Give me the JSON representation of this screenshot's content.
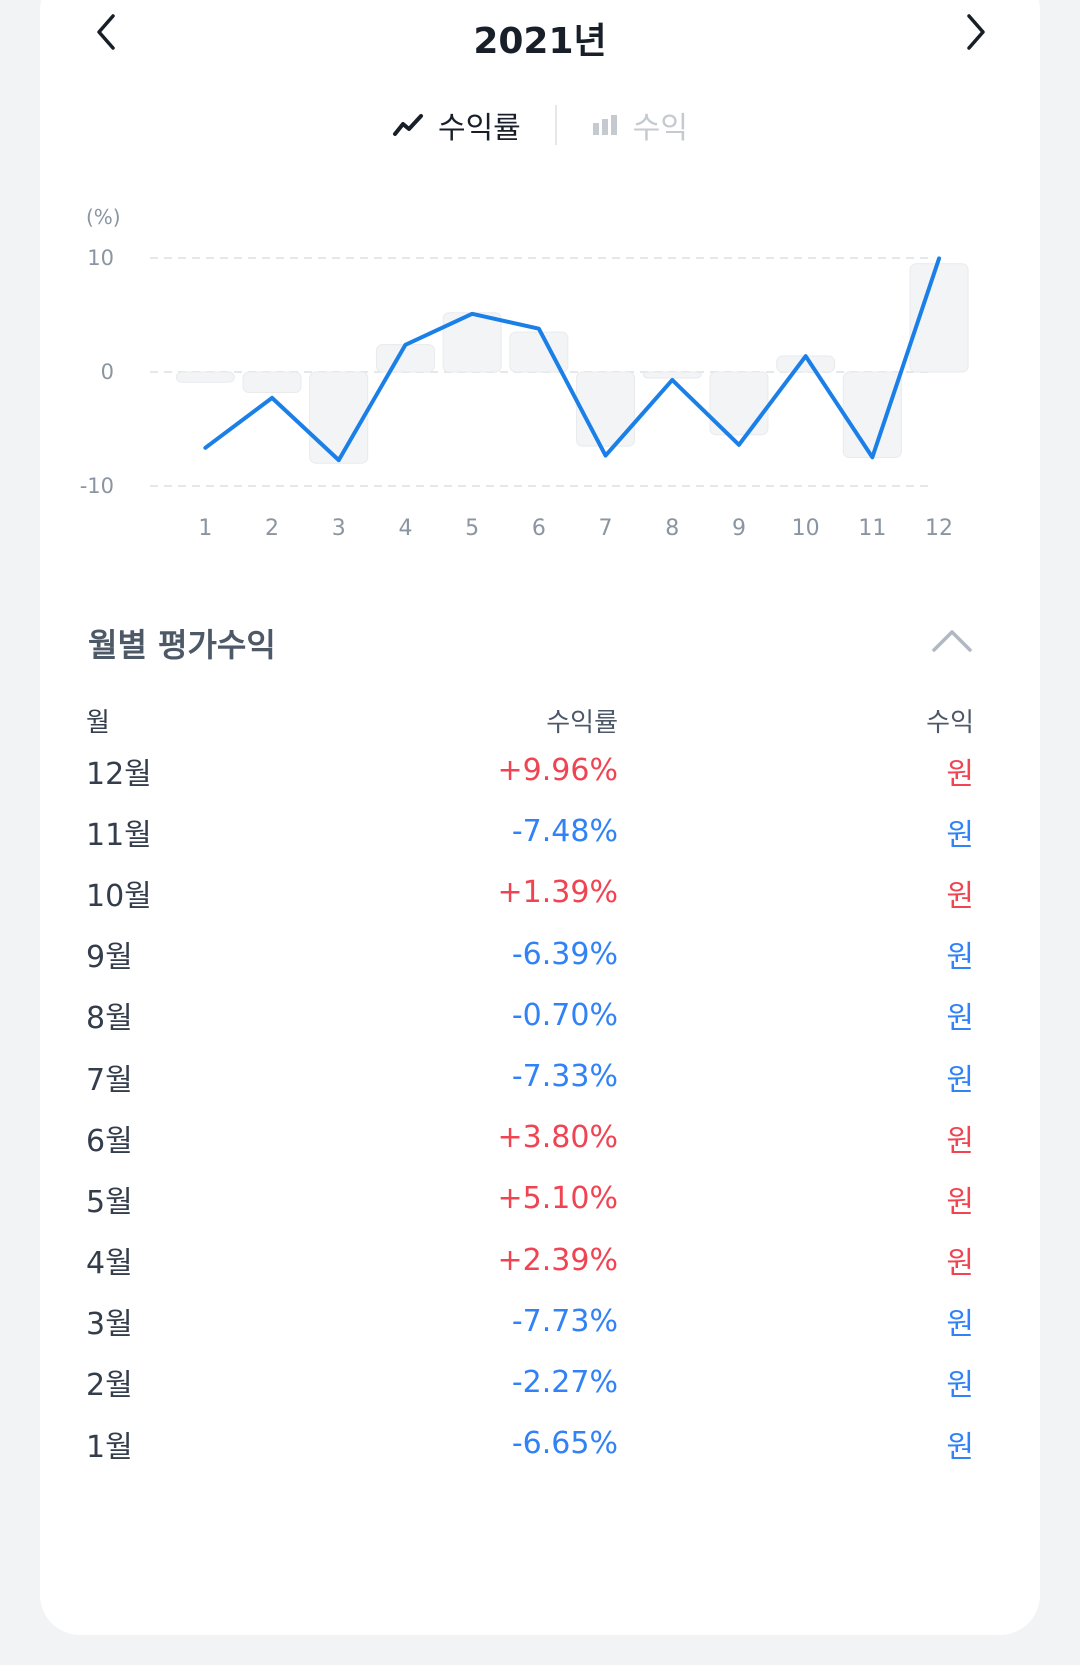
{
  "header": {
    "title": "2021년"
  },
  "tabs": [
    {
      "label": "수익률",
      "icon": "line-chart-icon",
      "active": true
    },
    {
      "label": "수익",
      "icon": "bar-chart-icon",
      "active": false
    }
  ],
  "chart_data": {
    "type": "line",
    "unit_label": "(%)",
    "x": [
      "1",
      "2",
      "3",
      "4",
      "5",
      "6",
      "7",
      "8",
      "9",
      "10",
      "11",
      "12"
    ],
    "series": [
      {
        "values": [
          -6.65,
          -2.27,
          -7.73,
          2.39,
          5.1,
          3.8,
          -7.33,
          -0.7,
          -6.39,
          1.39,
          -7.48,
          9.96
        ],
        "color": "#1b7fe8"
      }
    ],
    "bar_values": [
      -0.9,
      -1.8,
      -8.0,
      2.4,
      5.2,
      3.5,
      -6.5,
      -0.5,
      -5.5,
      1.4,
      -7.5,
      9.5
    ],
    "yticks": [
      "10",
      "0",
      "-10"
    ],
    "ylim": [
      -10,
      10
    ],
    "grid": true,
    "legend": "none"
  },
  "section": {
    "title": "월별 평가수익"
  },
  "table": {
    "headers": {
      "month": "월",
      "rate": "수익률",
      "profit": "수익"
    },
    "rows": [
      {
        "month": "12월",
        "rate": "+9.96%",
        "profit": "원",
        "sign": "pos"
      },
      {
        "month": "11월",
        "rate": "-7.48%",
        "profit": "원",
        "sign": "neg"
      },
      {
        "month": "10월",
        "rate": "+1.39%",
        "profit": "원",
        "sign": "pos"
      },
      {
        "month": "9월",
        "rate": "-6.39%",
        "profit": "원",
        "sign": "neg"
      },
      {
        "month": "8월",
        "rate": "-0.70%",
        "profit": "원",
        "sign": "neg"
      },
      {
        "month": "7월",
        "rate": "-7.33%",
        "profit": "원",
        "sign": "neg"
      },
      {
        "month": "6월",
        "rate": "+3.80%",
        "profit": "원",
        "sign": "pos"
      },
      {
        "month": "5월",
        "rate": "+5.10%",
        "profit": "원",
        "sign": "pos"
      },
      {
        "month": "4월",
        "rate": "+2.39%",
        "profit": "원",
        "sign": "pos"
      },
      {
        "month": "3월",
        "rate": "-7.73%",
        "profit": "원",
        "sign": "neg"
      },
      {
        "month": "2월",
        "rate": "-2.27%",
        "profit": "원",
        "sign": "neg"
      },
      {
        "month": "1월",
        "rate": "-6.65%",
        "profit": "원",
        "sign": "neg"
      }
    ]
  },
  "colors": {
    "positive": "#f04452",
    "negative": "#3182f6",
    "line": "#1b7fe8"
  }
}
